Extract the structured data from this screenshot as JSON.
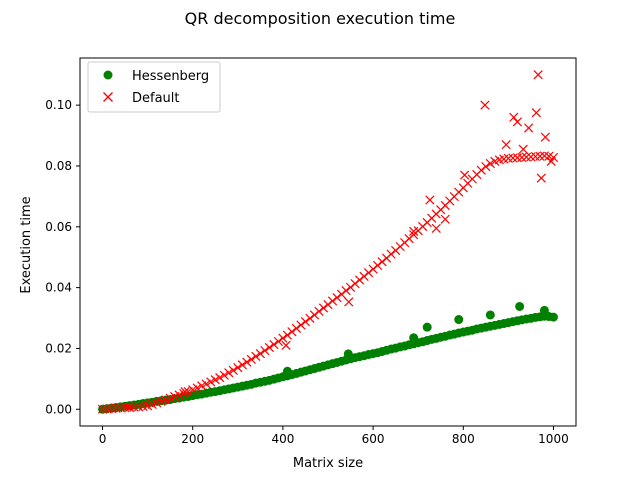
{
  "chart_data": {
    "type": "scatter",
    "title": "QR decomposition execution time",
    "xlabel": "Matrix size",
    "ylabel": "Execution time",
    "xlim": [
      -50,
      1050
    ],
    "ylim": [
      -0.0055,
      0.1155
    ],
    "xticks": [
      0,
      200,
      400,
      600,
      800,
      1000
    ],
    "yticks": [
      0.0,
      0.02,
      0.04,
      0.06,
      0.08,
      0.1
    ],
    "xtick_labels": [
      "0",
      "200",
      "400",
      "600",
      "800",
      "1000"
    ],
    "ytick_labels": [
      "0.00",
      "0.02",
      "0.04",
      "0.06",
      "0.08",
      "0.10"
    ],
    "grid": false,
    "legend_position": "top-left",
    "series": [
      {
        "name": "Hessenberg",
        "marker": "circle",
        "color": "#008000",
        "x": [
          0,
          10,
          20,
          30,
          40,
          50,
          60,
          70,
          80,
          90,
          100,
          110,
          120,
          130,
          140,
          150,
          160,
          170,
          180,
          190,
          200,
          210,
          220,
          230,
          240,
          250,
          260,
          270,
          280,
          290,
          300,
          310,
          320,
          330,
          340,
          350,
          360,
          370,
          380,
          390,
          400,
          410,
          420,
          430,
          440,
          450,
          460,
          470,
          480,
          490,
          500,
          510,
          520,
          530,
          540,
          550,
          560,
          570,
          580,
          590,
          600,
          610,
          620,
          630,
          640,
          650,
          660,
          670,
          680,
          690,
          700,
          710,
          720,
          730,
          740,
          750,
          760,
          770,
          780,
          790,
          800,
          810,
          820,
          830,
          840,
          850,
          860,
          870,
          880,
          890,
          900,
          910,
          920,
          930,
          940,
          950,
          960,
          970,
          980,
          990,
          1000,
          410,
          545,
          690,
          720,
          790,
          860,
          925,
          980
        ],
        "y": [
          0.0,
          0.0002,
          0.0004,
          0.0006,
          0.0008,
          0.001,
          0.0012,
          0.0014,
          0.0016,
          0.0019,
          0.0021,
          0.0023,
          0.0026,
          0.0028,
          0.003,
          0.0032,
          0.0035,
          0.0037,
          0.004,
          0.0042,
          0.0045,
          0.0048,
          0.005,
          0.0053,
          0.0056,
          0.0058,
          0.0061,
          0.0064,
          0.0067,
          0.007,
          0.0073,
          0.0076,
          0.0079,
          0.0082,
          0.0086,
          0.0089,
          0.0092,
          0.0095,
          0.0099,
          0.0103,
          0.0107,
          0.011,
          0.0114,
          0.0118,
          0.0122,
          0.0126,
          0.013,
          0.0134,
          0.0138,
          0.0142,
          0.0146,
          0.015,
          0.0154,
          0.0158,
          0.0162,
          0.0166,
          0.017,
          0.0173,
          0.0176,
          0.018,
          0.0183,
          0.0186,
          0.019,
          0.0194,
          0.0198,
          0.0201,
          0.0205,
          0.0208,
          0.0212,
          0.0215,
          0.0219,
          0.0222,
          0.0226,
          0.023,
          0.0233,
          0.0237,
          0.024,
          0.0244,
          0.0247,
          0.0251,
          0.0254,
          0.0257,
          0.026,
          0.0264,
          0.0267,
          0.027,
          0.0273,
          0.0276,
          0.0279,
          0.0282,
          0.0285,
          0.0288,
          0.0291,
          0.0294,
          0.0297,
          0.0299,
          0.0302,
          0.0304,
          0.0306,
          0.0305,
          0.0303,
          0.0125,
          0.0182,
          0.0235,
          0.027,
          0.0295,
          0.031,
          0.0338,
          0.0325
        ]
      },
      {
        "name": "Default",
        "marker": "x",
        "color": "#ff0000",
        "x": [
          0,
          10,
          20,
          30,
          40,
          50,
          60,
          70,
          80,
          90,
          100,
          110,
          120,
          130,
          140,
          150,
          160,
          170,
          180,
          190,
          200,
          210,
          220,
          230,
          240,
          250,
          260,
          270,
          280,
          290,
          300,
          310,
          320,
          330,
          340,
          350,
          360,
          370,
          380,
          390,
          400,
          410,
          420,
          430,
          440,
          450,
          460,
          470,
          480,
          490,
          500,
          510,
          520,
          530,
          540,
          550,
          560,
          570,
          580,
          590,
          600,
          610,
          620,
          630,
          640,
          650,
          660,
          670,
          680,
          690,
          700,
          710,
          720,
          730,
          740,
          750,
          760,
          770,
          780,
          790,
          800,
          810,
          820,
          830,
          840,
          850,
          860,
          870,
          880,
          890,
          900,
          910,
          920,
          930,
          940,
          950,
          960,
          970,
          980,
          990,
          1000,
          183,
          407,
          546,
          690,
          726,
          740,
          760,
          803,
          848,
          895,
          912,
          920,
          933,
          945,
          962,
          966,
          973,
          982,
          995
        ],
        "y": [
          0.0,
          0.0001,
          0.0002,
          0.0003,
          0.0004,
          0.0005,
          0.0006,
          0.0007,
          0.0008,
          0.0009,
          0.0011,
          0.0016,
          0.0021,
          0.0026,
          0.0031,
          0.0036,
          0.0042,
          0.0047,
          0.0052,
          0.0058,
          0.0064,
          0.007,
          0.0077,
          0.0083,
          0.009,
          0.0097,
          0.0104,
          0.0112,
          0.012,
          0.0128,
          0.0137,
          0.0146,
          0.0155,
          0.0164,
          0.0174,
          0.0183,
          0.0193,
          0.0203,
          0.0213,
          0.0223,
          0.0234,
          0.0244,
          0.0255,
          0.0266,
          0.0277,
          0.0288,
          0.0299,
          0.031,
          0.0322,
          0.0333,
          0.0344,
          0.0356,
          0.0367,
          0.0378,
          0.039,
          0.0401,
          0.0413,
          0.0425,
          0.0437,
          0.0449,
          0.0461,
          0.0473,
          0.0485,
          0.0497,
          0.051,
          0.0522,
          0.0535,
          0.0548,
          0.0561,
          0.0574,
          0.0587,
          0.0601,
          0.0614,
          0.0628,
          0.0642,
          0.0656,
          0.067,
          0.0685,
          0.0699,
          0.0714,
          0.0728,
          0.0743,
          0.0757,
          0.0772,
          0.0786,
          0.0798,
          0.0808,
          0.0815,
          0.082,
          0.0823,
          0.0825,
          0.0826,
          0.0827,
          0.0828,
          0.0829,
          0.083,
          0.0831,
          0.0832,
          0.0833,
          0.0832,
          0.0828,
          0.0058,
          0.021,
          0.0353,
          0.0585,
          0.0688,
          0.0595,
          0.0625,
          0.077,
          0.1,
          0.087,
          0.096,
          0.0945,
          0.0855,
          0.0925,
          0.0975,
          0.11,
          0.076,
          0.0895,
          0.0815
        ]
      }
    ]
  }
}
